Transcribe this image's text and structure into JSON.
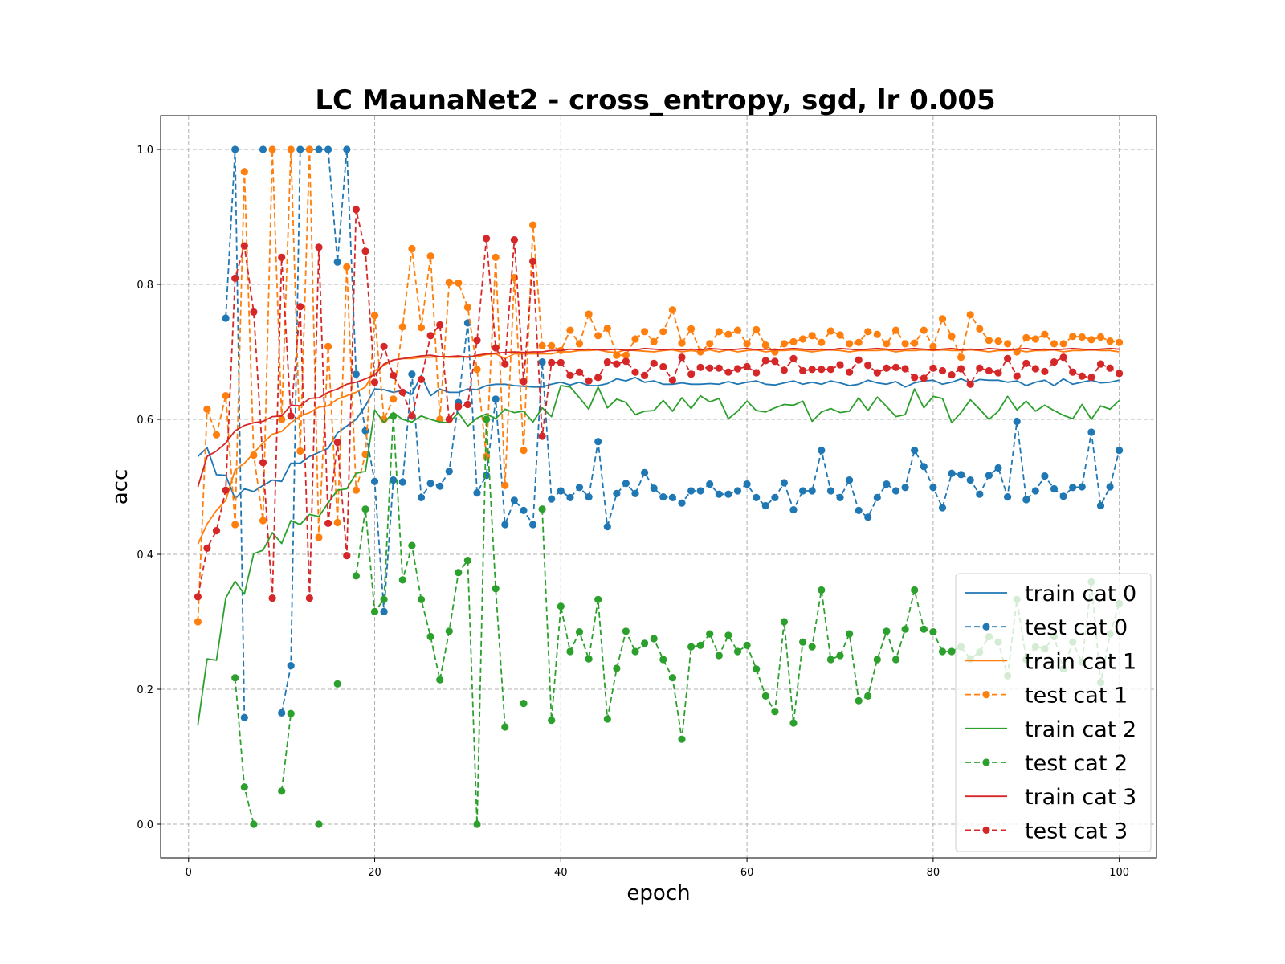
{
  "chart_data": {
    "type": "line",
    "title": "LC MaunaNet2 - cross_entropy, sgd, lr 0.005",
    "xlabel": "epoch",
    "ylabel": "acc",
    "xlim": [
      -3,
      104
    ],
    "ylim": [
      -0.05,
      1.05
    ],
    "xticks": [
      0,
      20,
      40,
      60,
      80,
      100
    ],
    "yticks": [
      0.0,
      0.2,
      0.4,
      0.6,
      0.8,
      1.0
    ],
    "xtick_labels": [
      "0",
      "20",
      "40",
      "60",
      "80",
      "100"
    ],
    "ytick_labels": [
      "0.0",
      "0.2",
      "0.4",
      "0.6",
      "0.8",
      "1.0"
    ],
    "grid": true,
    "legend_position": "lower-right",
    "x": [
      1,
      2,
      3,
      4,
      5,
      6,
      7,
      8,
      9,
      10,
      11,
      12,
      13,
      14,
      15,
      16,
      17,
      18,
      19,
      20,
      21,
      22,
      23,
      24,
      25,
      26,
      27,
      28,
      29,
      30,
      31,
      32,
      33,
      34,
      35,
      36,
      37,
      38,
      39,
      40,
      41,
      42,
      43,
      44,
      45,
      46,
      47,
      48,
      49,
      50,
      51,
      52,
      53,
      54,
      55,
      56,
      57,
      58,
      59,
      60,
      61,
      62,
      63,
      64,
      65,
      66,
      67,
      68,
      69,
      70,
      71,
      72,
      73,
      74,
      75,
      76,
      77,
      78,
      79,
      80,
      81,
      82,
      83,
      84,
      85,
      86,
      87,
      88,
      89,
      90,
      91,
      92,
      93,
      94,
      95,
      96,
      97,
      98,
      99,
      100
    ],
    "series": [
      {
        "name": "train cat 0",
        "style": "solid",
        "color": "#1f77b4",
        "values": [
          0.545,
          0.558,
          0.518,
          0.517,
          0.482,
          0.497,
          0.493,
          0.502,
          0.51,
          0.508,
          0.535,
          0.535,
          0.545,
          0.551,
          0.557,
          0.58,
          0.59,
          0.6,
          0.62,
          0.645,
          0.644,
          0.64,
          0.643,
          0.637,
          0.665,
          0.635,
          0.645,
          0.64,
          0.64,
          0.645,
          0.644,
          0.65,
          0.652,
          0.652,
          0.65,
          0.649,
          0.648,
          0.648,
          0.652,
          0.655,
          0.651,
          0.655,
          0.65,
          0.65,
          0.653,
          0.66,
          0.657,
          0.662,
          0.655,
          0.657,
          0.652,
          0.652,
          0.654,
          0.652,
          0.652,
          0.653,
          0.652,
          0.656,
          0.652,
          0.655,
          0.657,
          0.652,
          0.651,
          0.654,
          0.657,
          0.652,
          0.655,
          0.652,
          0.657,
          0.654,
          0.65,
          0.652,
          0.658,
          0.654,
          0.652,
          0.656,
          0.648,
          0.654,
          0.657,
          0.658,
          0.652,
          0.655,
          0.66,
          0.654,
          0.659,
          0.658,
          0.658,
          0.655,
          0.657,
          0.65,
          0.655,
          0.658,
          0.65,
          0.66,
          0.652,
          0.655,
          0.658,
          0.654,
          0.655,
          0.658
        ]
      },
      {
        "name": "test cat 0",
        "style": "dashed",
        "color": "#1f77b4",
        "values": [
          null,
          null,
          null,
          0.75,
          1.0,
          0.158,
          null,
          1.0,
          null,
          0.165,
          0.235,
          1.0,
          1.0,
          1.0,
          1.0,
          0.833,
          1.0,
          0.667,
          0.583,
          0.508,
          0.315,
          0.51,
          0.507,
          0.667,
          0.484,
          0.505,
          0.501,
          0.523,
          0.625,
          0.743,
          0.491,
          0.517,
          0.63,
          0.444,
          0.48,
          0.465,
          0.444,
          0.685,
          0.482,
          0.494,
          0.484,
          0.499,
          0.485,
          0.567,
          0.441,
          0.49,
          0.505,
          0.49,
          0.521,
          0.498,
          0.485,
          0.484,
          0.476,
          0.494,
          0.494,
          0.504,
          0.489,
          0.489,
          0.494,
          0.504,
          0.484,
          0.472,
          0.484,
          0.506,
          0.466,
          0.494,
          0.494,
          0.554,
          0.494,
          0.484,
          0.51,
          0.465,
          0.455,
          0.484,
          0.504,
          0.494,
          0.499,
          0.554,
          0.53,
          0.499,
          0.469,
          0.52,
          0.518,
          0.51,
          0.489,
          0.517,
          0.528,
          0.485,
          0.597,
          0.481,
          0.494,
          0.516,
          0.497,
          0.486,
          0.499,
          0.5,
          0.581,
          0.472,
          0.5,
          0.554
        ]
      },
      {
        "name": "train cat 1",
        "style": "solid",
        "color": "#ff7f0e",
        "values": [
          0.415,
          0.445,
          0.465,
          0.48,
          0.525,
          0.535,
          0.55,
          0.565,
          0.578,
          0.582,
          0.595,
          0.605,
          0.61,
          0.618,
          0.62,
          0.63,
          0.635,
          0.64,
          0.648,
          0.672,
          0.68,
          0.688,
          0.69,
          0.69,
          0.692,
          0.692,
          0.693,
          0.692,
          0.692,
          0.693,
          0.693,
          0.696,
          0.697,
          0.69,
          0.697,
          0.697,
          0.697,
          0.697,
          0.697,
          0.7,
          0.7,
          0.702,
          0.702,
          0.703,
          0.7,
          0.699,
          0.703,
          0.702,
          0.701,
          0.7,
          0.702,
          0.703,
          0.7,
          0.702,
          0.7,
          0.703,
          0.7,
          0.703,
          0.7,
          0.702,
          0.703,
          0.7,
          0.702,
          0.702,
          0.703,
          0.702,
          0.7,
          0.702,
          0.703,
          0.702,
          0.7,
          0.702,
          0.702,
          0.702,
          0.703,
          0.7,
          0.702,
          0.702,
          0.703,
          0.702,
          0.703,
          0.702,
          0.702,
          0.703,
          0.702,
          0.7,
          0.702,
          0.702,
          0.703,
          0.7,
          0.702,
          0.702,
          0.703,
          0.7,
          0.702,
          0.702,
          0.703,
          0.702,
          0.702,
          0.7
        ]
      },
      {
        "name": "test cat 1",
        "style": "dashed",
        "color": "#ff7f0e",
        "values": [
          0.3,
          0.615,
          0.577,
          0.635,
          0.444,
          0.967,
          0.547,
          0.45,
          1.0,
          0.6,
          1.0,
          0.553,
          1.0,
          0.425,
          0.708,
          0.447,
          0.826,
          0.495,
          0.548,
          0.754,
          0.6,
          0.63,
          0.737,
          0.853,
          0.736,
          0.842,
          0.6,
          0.803,
          0.802,
          0.766,
          0.674,
          0.545,
          0.84,
          0.502,
          0.81,
          0.554,
          0.888,
          0.709,
          0.709,
          0.702,
          0.732,
          0.712,
          0.756,
          0.724,
          0.735,
          0.695,
          0.695,
          0.719,
          0.73,
          0.715,
          0.73,
          0.762,
          0.713,
          0.734,
          0.7,
          0.712,
          0.73,
          0.726,
          0.732,
          0.712,
          0.733,
          0.71,
          0.7,
          0.712,
          0.715,
          0.719,
          0.724,
          0.714,
          0.731,
          0.725,
          0.712,
          0.714,
          0.73,
          0.726,
          0.712,
          0.732,
          0.712,
          0.713,
          0.732,
          0.708,
          0.749,
          0.723,
          0.692,
          0.755,
          0.734,
          0.717,
          0.716,
          0.712,
          0.7,
          0.721,
          0.719,
          0.726,
          0.712,
          0.712,
          0.723,
          0.722,
          0.718,
          0.722,
          0.716,
          0.714
        ]
      },
      {
        "name": "train cat 2",
        "style": "solid",
        "color": "#2ca02c",
        "values": [
          0.147,
          0.245,
          0.243,
          0.335,
          0.36,
          0.341,
          0.401,
          0.406,
          0.432,
          0.416,
          0.45,
          0.444,
          0.459,
          0.456,
          0.476,
          0.495,
          0.497,
          0.52,
          0.523,
          0.614,
          0.595,
          0.61,
          0.6,
          0.596,
          0.605,
          0.6,
          0.596,
          0.595,
          0.61,
          0.59,
          0.602,
          0.608,
          0.601,
          0.615,
          0.61,
          0.612,
          0.596,
          0.617,
          0.604,
          0.65,
          0.648,
          0.632,
          0.615,
          0.648,
          0.617,
          0.63,
          0.625,
          0.607,
          0.612,
          0.613,
          0.628,
          0.612,
          0.632,
          0.616,
          0.635,
          0.626,
          0.631,
          0.601,
          0.612,
          0.627,
          0.613,
          0.611,
          0.617,
          0.622,
          0.621,
          0.627,
          0.597,
          0.611,
          0.616,
          0.61,
          0.612,
          0.632,
          0.613,
          0.633,
          0.619,
          0.604,
          0.607,
          0.645,
          0.617,
          0.634,
          0.631,
          0.595,
          0.61,
          0.629,
          0.615,
          0.6,
          0.612,
          0.634,
          0.614,
          0.627,
          0.612,
          0.621,
          0.613,
          0.606,
          0.601,
          0.622,
          0.6,
          0.62,
          0.615,
          0.628
        ]
      },
      {
        "name": "test cat 2",
        "style": "dashed",
        "color": "#2ca02c",
        "values": [
          null,
          null,
          null,
          null,
          0.217,
          0.055,
          0.0,
          null,
          null,
          0.049,
          0.164,
          null,
          null,
          0.0,
          null,
          0.208,
          null,
          0.368,
          0.467,
          0.315,
          0.333,
          0.605,
          0.362,
          0.413,
          0.333,
          0.278,
          0.214,
          0.286,
          0.373,
          0.391,
          0.0,
          0.6,
          0.349,
          0.144,
          null,
          0.179,
          null,
          0.467,
          0.154,
          0.323,
          0.256,
          0.285,
          0.245,
          0.333,
          0.156,
          0.231,
          0.286,
          0.256,
          0.268,
          0.275,
          0.244,
          0.217,
          0.126,
          0.263,
          0.265,
          0.282,
          0.25,
          0.28,
          0.256,
          0.265,
          0.23,
          0.19,
          0.167,
          0.3,
          0.15,
          0.27,
          0.263,
          0.347,
          0.244,
          0.25,
          0.282,
          0.183,
          0.19,
          0.244,
          0.286,
          0.244,
          0.289,
          0.347,
          0.289,
          0.285,
          0.256,
          0.256,
          0.263,
          0.245,
          0.255,
          0.278,
          0.27,
          0.22,
          0.333,
          0.244,
          0.263,
          0.26,
          0.278,
          0.23,
          0.27,
          0.24,
          0.359,
          0.21,
          0.282,
          0.327
        ]
      },
      {
        "name": "train cat 3",
        "style": "solid",
        "color": "#d62728",
        "values": [
          0.5,
          0.545,
          0.553,
          0.565,
          0.583,
          0.591,
          0.595,
          0.597,
          0.604,
          0.605,
          0.621,
          0.62,
          0.631,
          0.632,
          0.64,
          0.645,
          0.652,
          0.655,
          0.66,
          0.666,
          0.682,
          0.688,
          0.69,
          0.692,
          0.694,
          0.695,
          0.693,
          0.693,
          0.694,
          0.692,
          0.695,
          0.697,
          0.698,
          0.699,
          0.7,
          0.699,
          0.7,
          0.7,
          0.702,
          0.702,
          0.704,
          0.703,
          0.704,
          0.703,
          0.703,
          0.704,
          0.702,
          0.703,
          0.705,
          0.704,
          0.703,
          0.704,
          0.703,
          0.704,
          0.703,
          0.705,
          0.704,
          0.703,
          0.704,
          0.705,
          0.703,
          0.704,
          0.703,
          0.704,
          0.705,
          0.704,
          0.703,
          0.704,
          0.703,
          0.705,
          0.704,
          0.703,
          0.704,
          0.705,
          0.704,
          0.703,
          0.704,
          0.705,
          0.704,
          0.703,
          0.704,
          0.705,
          0.703,
          0.704,
          0.703,
          0.705,
          0.704,
          0.703,
          0.704,
          0.705,
          0.703,
          0.704,
          0.703,
          0.704,
          0.705,
          0.704,
          0.703,
          0.704,
          0.705,
          0.704
        ]
      },
      {
        "name": "test cat 3",
        "style": "dashed",
        "color": "#d62728",
        "values": [
          0.337,
          0.409,
          0.435,
          0.495,
          0.809,
          0.857,
          0.759,
          0.536,
          0.335,
          0.84,
          0.605,
          0.767,
          0.335,
          0.855,
          0.446,
          0.566,
          0.398,
          0.911,
          0.849,
          0.655,
          0.708,
          0.665,
          0.64,
          0.605,
          0.659,
          0.724,
          0.74,
          0.6,
          0.619,
          0.622,
          0.717,
          0.868,
          0.706,
          0.682,
          0.866,
          0.656,
          0.834,
          0.575,
          0.684,
          0.684,
          0.665,
          0.67,
          0.657,
          0.662,
          0.685,
          0.682,
          0.686,
          0.67,
          0.665,
          0.683,
          0.678,
          0.658,
          0.692,
          0.667,
          0.677,
          0.676,
          0.676,
          0.67,
          0.675,
          0.678,
          0.669,
          0.687,
          0.686,
          0.673,
          0.69,
          0.672,
          0.674,
          0.674,
          0.674,
          0.681,
          0.67,
          0.688,
          0.68,
          0.669,
          0.676,
          0.677,
          0.675,
          0.662,
          0.661,
          0.676,
          0.672,
          0.666,
          0.675,
          0.652,
          0.676,
          0.672,
          0.669,
          0.69,
          0.664,
          0.683,
          0.675,
          0.671,
          0.685,
          0.692,
          0.67,
          0.664,
          0.662,
          0.682,
          0.676,
          0.668
        ]
      }
    ]
  }
}
